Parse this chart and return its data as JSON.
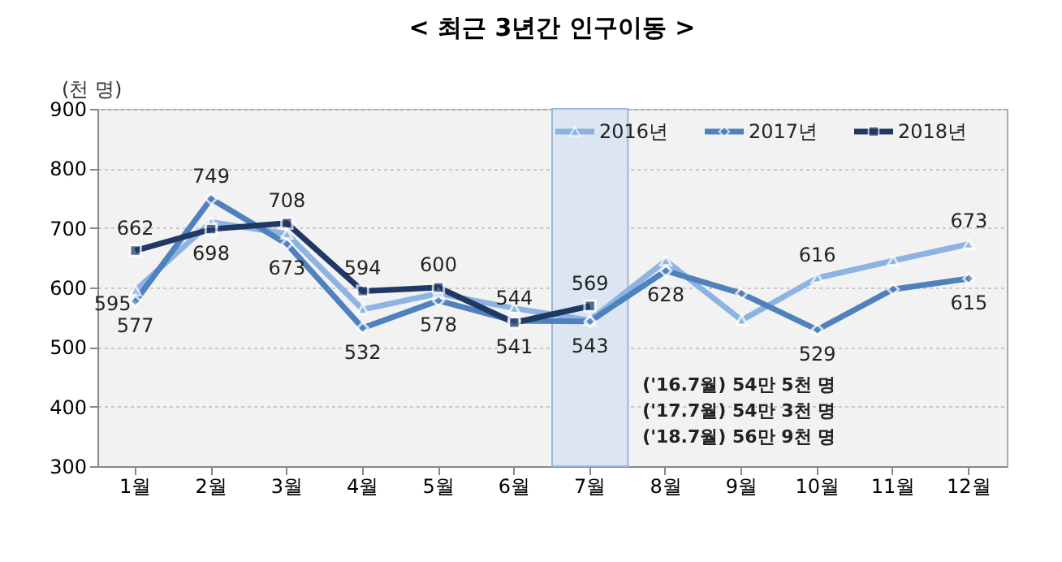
{
  "chart_data": {
    "type": "line",
    "title": "< 최근 3년간 인구이동 >",
    "ylabel": "(천 명)",
    "categories": [
      "1월",
      "2월",
      "3월",
      "4월",
      "5월",
      "6월",
      "7월",
      "8월",
      "9월",
      "10월",
      "11월",
      "12월"
    ],
    "series": [
      {
        "name": "2016년",
        "color": "#8db3e2",
        "marker": "triangle",
        "values": [
          595,
          710,
          690,
          563,
          590,
          565,
          545,
          645,
          545,
          616,
          645,
          673
        ],
        "value_labels": [
          "595",
          null,
          null,
          null,
          null,
          null,
          null,
          null,
          null,
          "616",
          null,
          "673"
        ]
      },
      {
        "name": "2017년",
        "color": "#4f81bd",
        "marker": "diamond",
        "values": [
          577,
          749,
          673,
          532,
          578,
          544,
          543,
          628,
          590,
          529,
          597,
          615
        ],
        "value_labels": [
          "577",
          "749",
          "673",
          "532",
          "578",
          "544",
          "543",
          "628",
          null,
          "529",
          null,
          "615"
        ]
      },
      {
        "name": "2018년",
        "color": "#1f3864",
        "marker": "square",
        "values": [
          662,
          698,
          708,
          594,
          600,
          541,
          569,
          null,
          null,
          null,
          null,
          null
        ],
        "value_labels": [
          "662",
          "698",
          "708",
          "594",
          "600",
          "541",
          "569",
          null,
          null,
          null,
          null,
          null
        ]
      }
    ],
    "ylim": [
      300,
      900
    ],
    "yticks": [
      300,
      400,
      500,
      600,
      700,
      800,
      900
    ],
    "grid": "y",
    "legend": "top right",
    "bands": [
      {
        "axis": "x",
        "from": "7월",
        "to": "7월",
        "color": "#dce6f2"
      }
    ],
    "annotations": [
      "('16.7월) 54만 5천 명",
      "('17.7월) 54만 3천 명",
      "('18.7월) 56만 9천 명"
    ]
  }
}
